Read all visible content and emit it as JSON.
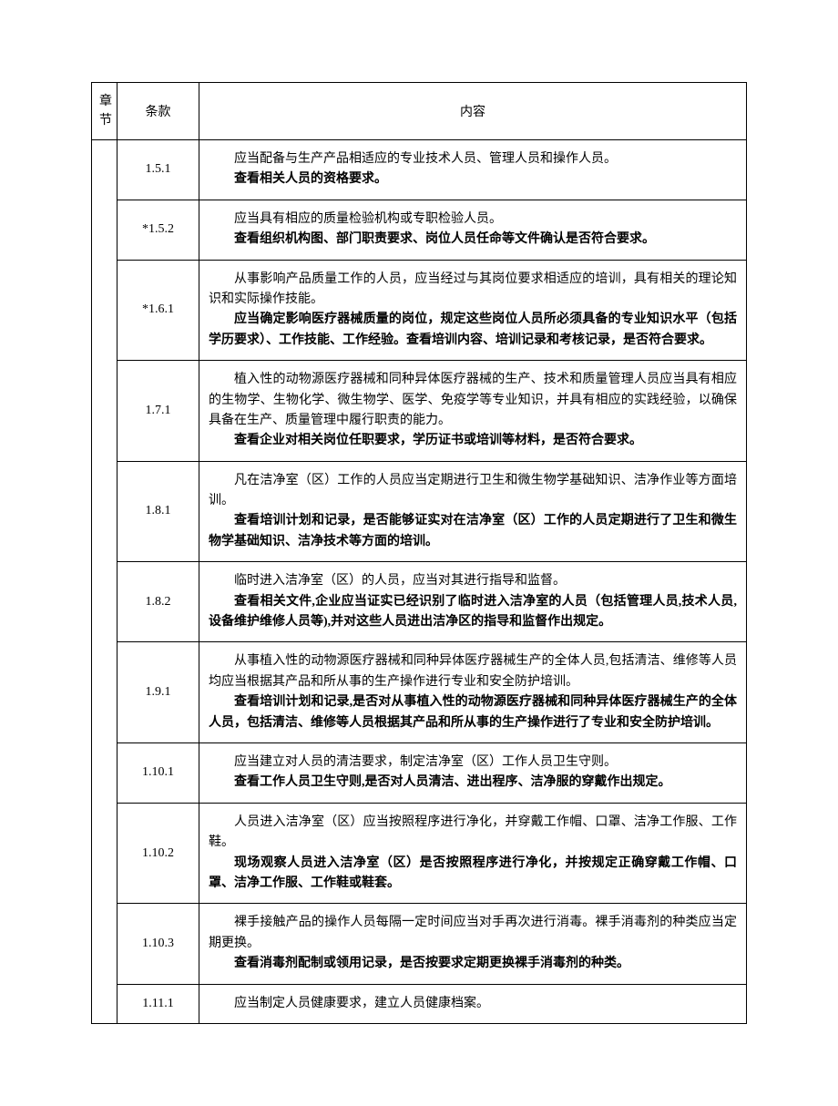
{
  "table": {
    "headers": {
      "chapter": "章节",
      "clause": "条款",
      "content": "内容"
    },
    "rows": [
      {
        "clause": "1.5.1",
        "lines": [
          {
            "text": "应当配备与生产产品相适应的专业技术人员、管理人员和操作人员。",
            "bold": false
          },
          {
            "text": "查看相关人员的资格要求。",
            "bold": true
          }
        ]
      },
      {
        "clause": "*1.5.2",
        "lines": [
          {
            "text": "应当具有相应的质量检验机构或专职检验人员。",
            "bold": false
          },
          {
            "text": "查看组织机构图、部门职责要求、岗位人员任命等文件确认是否符合要求。",
            "bold": true
          }
        ]
      },
      {
        "clause": "*1.6.1",
        "lines": [
          {
            "text": "从事影响产品质量工作的人员，应当经过与其岗位要求相适应的培训，具有相关的理论知识和实际操作技能。",
            "bold": false
          },
          {
            "text": "应当确定影响医疗器械质量的岗位，规定这些岗位人员所必须具备的专业知识水平（包括学历要求）、工作技能、工作经验。查看培训内容、培训记录和考核记录，是否符合要求。",
            "bold": true
          }
        ]
      },
      {
        "clause": "1.7.1",
        "lines": [
          {
            "text": "植入性的动物源医疗器械和同种异体医疗器械的生产、技术和质量管理人员应当具有相应的生物学、生物化学、微生物学、医学、免疫学等专业知识，并具有相应的实践经验，以确保具备在生产、质量管理中履行职责的能力。",
            "bold": false
          },
          {
            "text": "查看企业对相关岗位任职要求，学历证书或培训等材料，是否符合要求。",
            "bold": true
          }
        ]
      },
      {
        "clause": "1.8.1",
        "lines": [
          {
            "text": "凡在洁净室（区）工作的人员应当定期进行卫生和微生物学基础知识、洁净作业等方面培训。",
            "bold": false
          },
          {
            "text": "查看培训计划和记录，是否能够证实对在洁净室（区）工作的人员定期进行了卫生和微生物学基础知识、洁净技术等方面的培训。",
            "bold": true
          }
        ]
      },
      {
        "clause": "1.8.2",
        "lines": [
          {
            "text": "临时进入洁净室（区）的人员，应当对其进行指导和监督。",
            "bold": false
          },
          {
            "text": "查看相关文件,企业应当证实已经识别了临时进入洁净室的人员（包括管理人员,技术人员,设备维护维修人员等),并对这些人员进出洁净区的指导和监督作出规定。",
            "bold": true
          }
        ]
      },
      {
        "clause": "1.9.1",
        "lines": [
          {
            "text": "从事植入性的动物源医疗器械和同种异体医疗器械生产的全体人员,包括清洁、维修等人员均应当根据其产品和所从事的生产操作进行专业和安全防护培训。",
            "bold": false
          },
          {
            "text": "查看培训计划和记录,是否对从事植入性的动物源医疗器械和同种异体医疗器械生产的全体人员，包括清洁、维修等人员根据其产品和所从事的生产操作进行了专业和安全防护培训。",
            "bold": true
          }
        ]
      },
      {
        "clause": "1.10.1",
        "lines": [
          {
            "text": "应当建立对人员的清洁要求，制定洁净室（区）工作人员卫生守则。",
            "bold": false
          },
          {
            "text": "查看工作人员卫生守则,是否对人员清洁、进出程序、洁净服的穿戴作出规定。",
            "bold": true
          }
        ]
      },
      {
        "clause": "1.10.2",
        "lines": [
          {
            "text": "人员进入洁净室（区）应当按照程序进行净化，并穿戴工作帽、口罩、洁净工作服、工作鞋。",
            "bold": false
          },
          {
            "text": "现场观察人员进入洁净室（区）是否按照程序进行净化，并按规定正确穿戴工作帽、口罩、洁净工作服、工作鞋或鞋套。",
            "bold": true
          }
        ]
      },
      {
        "clause": "1.10.3",
        "lines": [
          {
            "text": "裸手接触产品的操作人员每隔一定时间应当对手再次进行消毒。裸手消毒剂的种类应当定期更换。",
            "bold": false
          },
          {
            "text": "查看消毒剂配制或领用记录，是否按要求定期更换裸手消毒剂的种类。",
            "bold": true
          }
        ]
      },
      {
        "clause": "1.11.1",
        "lines": [
          {
            "text": "应当制定人员健康要求，建立人员健康档案。",
            "bold": false
          }
        ]
      }
    ]
  },
  "styling": {
    "background_color": "#ffffff",
    "border_color": "#000000",
    "text_color": "#000000",
    "font_family": "SimSun",
    "body_font_size": 14,
    "line_height": 1.6
  }
}
